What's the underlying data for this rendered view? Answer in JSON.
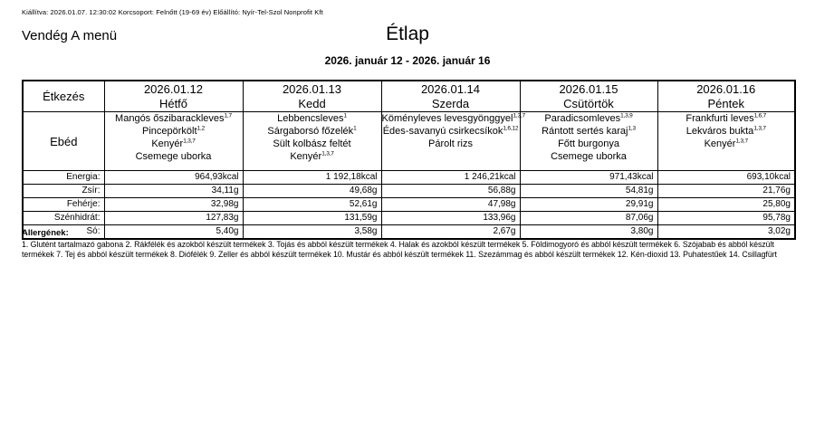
{
  "meta_line": "Kiállítva: 2026.01.07. 12:30:02 Korcsoport: Felnőtt (19-69 év) Előállító: Nyír-Tel-Szol Nonprofit Kft",
  "menu_name": "Vendég A menü",
  "title": "Étlap",
  "date_range": "2026. január 12 - 2026. január 16",
  "table": {
    "meal_header": "Étkezés",
    "meal_row_label": "Ebéd",
    "nutrition_labels": [
      "Energia:",
      "Zsír:",
      "Fehérje:",
      "Szénhidrát:",
      "Só:"
    ],
    "days": [
      {
        "date": "2026.01.12",
        "weekday": "Hétfő",
        "items": [
          {
            "name": "Mangós őszibarackleves",
            "allergens": "1,7"
          },
          {
            "name": "Pincepörkölt",
            "allergens": "1,2"
          },
          {
            "name": "Kenyér",
            "allergens": "1,3,7"
          },
          {
            "name": "Csemege uborka",
            "allergens": ""
          }
        ],
        "nutrition": [
          "964,93kcal",
          "34,11g",
          "32,98g",
          "127,83g",
          "5,40g"
        ]
      },
      {
        "date": "2026.01.13",
        "weekday": "Kedd",
        "items": [
          {
            "name": "Lebbencsleves",
            "allergens": "1"
          },
          {
            "name": "Sárgaborsó főzelék",
            "allergens": "1"
          },
          {
            "name": "Sült kolbász feltét",
            "allergens": ""
          },
          {
            "name": "Kenyér",
            "allergens": "1,3,7"
          }
        ],
        "nutrition": [
          "1 192,18kcal",
          "49,68g",
          "52,61g",
          "131,59g",
          "3,58g"
        ]
      },
      {
        "date": "2026.01.14",
        "weekday": "Szerda",
        "items": [
          {
            "name": "Köményleves levesgyönggyel",
            "allergens": "1,3,7"
          },
          {
            "name": "Édes-savanyú csirkecsíkok",
            "allergens": "1,6,12"
          },
          {
            "name": "Párolt rizs",
            "allergens": ""
          }
        ],
        "nutrition": [
          "1 246,21kcal",
          "56,88g",
          "47,98g",
          "133,96g",
          "2,67g"
        ]
      },
      {
        "date": "2026.01.15",
        "weekday": "Csütörtök",
        "items": [
          {
            "name": "Paradicsomleves",
            "allergens": "1,3,9"
          },
          {
            "name": "Rántott sertés karaj",
            "allergens": "1,3"
          },
          {
            "name": "Főtt burgonya",
            "allergens": ""
          },
          {
            "name": "Csemege uborka",
            "allergens": ""
          }
        ],
        "nutrition": [
          "971,43kcal",
          "54,81g",
          "29,91g",
          "87,06g",
          "3,80g"
        ]
      },
      {
        "date": "2026.01.16",
        "weekday": "Péntek",
        "items": [
          {
            "name": "Frankfurti leves",
            "allergens": "1,6,7"
          },
          {
            "name": "Lekváros bukta",
            "allergens": "1,3,7"
          },
          {
            "name": "Kenyér",
            "allergens": "1,3,7"
          }
        ],
        "nutrition": [
          "693,10kcal",
          "21,76g",
          "25,80g",
          "95,78g",
          "3,02g"
        ]
      }
    ]
  },
  "allergens": {
    "heading": "Allergének:",
    "text": "1. Glutént tartalmazó gabona 2. Rákfélék és azokból készült termékek 3. Tojás és abból készült termékek 4. Halak és azokból készült termékek 5. Földimogyoró és abból készült termékek 6. Szójabab és abból készült termékek 7. Tej és abból készült termékek 8. Diófélék 9. Zeller és abból készült termékek 10. Mustár és abból készült termékek 11. Szezámmag és abból készült termékek 12. Kén-dioxid 13. Puhatestűek 14. Csillagfürt"
  }
}
